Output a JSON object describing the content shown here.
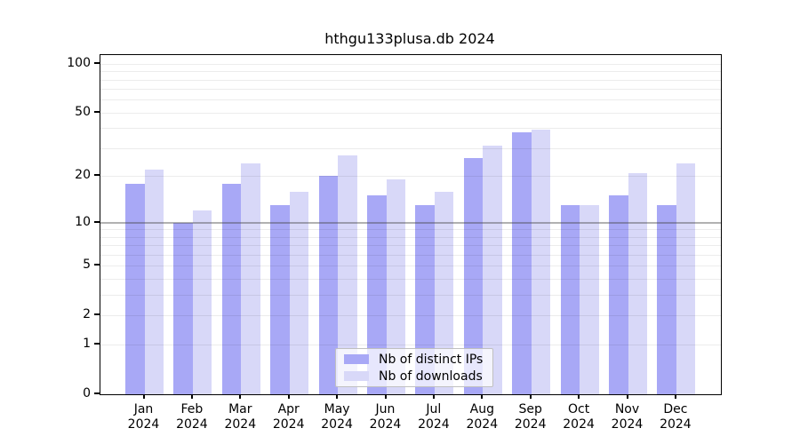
{
  "title": "hthgu133plusa.db 2024",
  "chart_data": {
    "type": "bar",
    "subtype": "grouped",
    "title": "hthgu133plusa.db 2024",
    "year": "2024",
    "categories": [
      "Jan",
      "Feb",
      "Mar",
      "Apr",
      "May",
      "Jun",
      "Jul",
      "Aug",
      "Sep",
      "Oct",
      "Nov",
      "Dec"
    ],
    "series": [
      {
        "name": "Nb of distinct IPs",
        "color": "#a8a8f6",
        "values": [
          18,
          10,
          18,
          13,
          20,
          15,
          13,
          26,
          38,
          13,
          15,
          13
        ]
      },
      {
        "name": "Nb of downloads",
        "color": "#d8d8f8",
        "values": [
          22,
          12,
          24,
          16,
          27,
          19,
          16,
          31,
          39,
          13,
          21,
          24
        ]
      }
    ],
    "xlabel": "",
    "ylabel": "",
    "yscale": "log(value+1)",
    "ylim": [
      0,
      113
    ],
    "y_ticks": [
      0,
      1,
      2,
      5,
      10,
      20,
      50,
      100
    ],
    "y_tick_labels": [
      "0",
      "1",
      "2",
      "5",
      "10",
      "20",
      "50",
      "100"
    ],
    "gridlines": [
      1,
      2,
      3,
      4,
      5,
      6,
      7,
      8,
      9,
      10,
      20,
      30,
      40,
      50,
      60,
      70,
      80,
      90,
      100
    ],
    "major_gridline": 10,
    "grid": true,
    "legend_position": "bottom-center",
    "axis_color": "#000000",
    "minor_grid_color": "rgba(0,0,0,0.075)",
    "major_grid_color": "rgba(70,70,70,0.42)"
  }
}
